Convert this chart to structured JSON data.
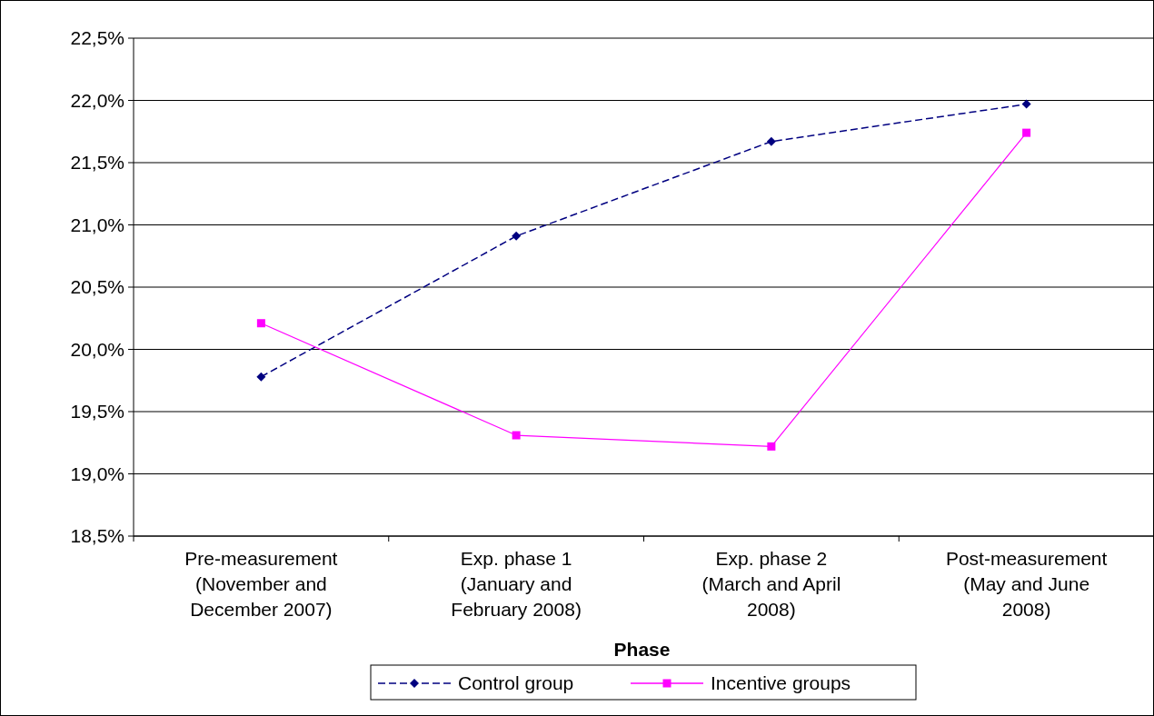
{
  "chart_data": {
    "type": "line",
    "xlabel": "Phase",
    "categories": [
      "Pre-measurement\n(November and\nDecember 2007)",
      "Exp. phase 1\n(January and\nFebruary 2008)",
      "Exp. phase 2\n(March and April\n2008)",
      "Post-measurement\n(May and June\n2008)"
    ],
    "series": [
      {
        "name": "Control group",
        "color": "#000080",
        "values": [
          19.78,
          20.91,
          21.67,
          21.97
        ],
        "marker": "diamond",
        "line_style": "dashed"
      },
      {
        "name": "Incentive groups",
        "color": "#ff00ff",
        "values": [
          20.21,
          19.31,
          19.22,
          21.74
        ],
        "marker": "square",
        "line_style": "solid"
      }
    ],
    "ylim": [
      18.5,
      22.5
    ],
    "yticks": [
      {
        "value": 18.5,
        "label": "18,5%"
      },
      {
        "value": 19,
        "label": "19,0%"
      },
      {
        "value": 19.5,
        "label": "19,5%"
      },
      {
        "value": 20,
        "label": "20,0%"
      },
      {
        "value": 20.5,
        "label": "20,5%"
      },
      {
        "value": 21,
        "label": "21,0%"
      },
      {
        "value": 21.5,
        "label": "21,5%"
      },
      {
        "value": 22,
        "label": "22,0%"
      },
      {
        "value": 22.5,
        "label": "22,5%"
      }
    ],
    "grid": "y",
    "legend": "bottom"
  }
}
